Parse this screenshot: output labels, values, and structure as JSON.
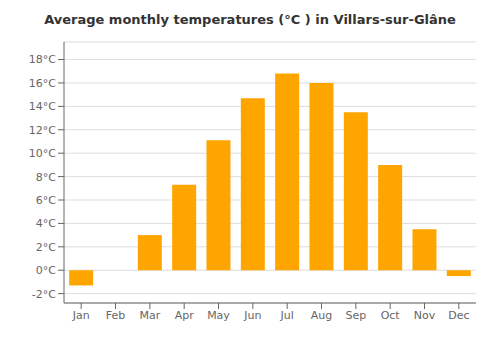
{
  "chart_data": {
    "type": "bar",
    "title": "Average monthly temperatures (°C ) in Villars-sur-Glâne",
    "categories": [
      "Jan",
      "Feb",
      "Mar",
      "Apr",
      "May",
      "Jun",
      "Jul",
      "Aug",
      "Sep",
      "Oct",
      "Nov",
      "Dec"
    ],
    "values": [
      -1.3,
      0.0,
      3.0,
      7.3,
      11.1,
      14.7,
      16.8,
      16.0,
      13.5,
      9.0,
      3.5,
      -0.5
    ],
    "color": "#FFA500",
    "ylim": [
      -2.8,
      19.5
    ],
    "yticks": [
      {
        "value": -2,
        "label": "-2°C"
      },
      {
        "value": 0,
        "label": "0°C"
      },
      {
        "value": 2,
        "label": "2°C"
      },
      {
        "value": 4,
        "label": "4°C"
      },
      {
        "value": 6,
        "label": "6°C"
      },
      {
        "value": 8,
        "label": "8°C"
      },
      {
        "value": 10,
        "label": "10°C"
      },
      {
        "value": 12,
        "label": "12°C"
      },
      {
        "value": 14,
        "label": "14°C"
      },
      {
        "value": 16,
        "label": "16°C"
      },
      {
        "value": 18,
        "label": "18°C"
      }
    ],
    "grid": true
  }
}
